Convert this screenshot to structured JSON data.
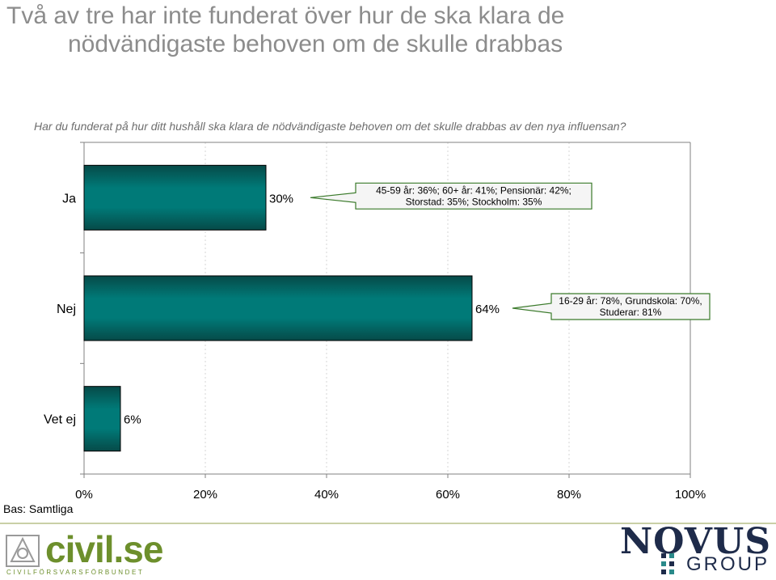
{
  "header": {
    "title_line1": "Två av tre har inte funderat över hur de ska klara de",
    "title_line2": "nödvändigaste behoven om de skulle drabbas",
    "question": "Har du funderat på hur ditt hushåll ska klara de nödvändigaste behoven om det skulle drabbas av den nya influensan?"
  },
  "base": "Bas: Samtliga",
  "logos": {
    "civil": "civil.se",
    "civil_sub": "CIVILFÖRSVARSFÖRBUNDET",
    "novus": "NOVUS",
    "group": "GROUP"
  },
  "colors": {
    "bar": "#007a78",
    "bar_dark": "#064a48",
    "callout_border": "#3a7a2a",
    "title": "#8c8c8c"
  },
  "chart_data": {
    "type": "bar",
    "orientation": "horizontal",
    "categories": [
      "Ja",
      "Nej",
      "Vet ej"
    ],
    "values": [
      30,
      64,
      6
    ],
    "value_labels": [
      "30%",
      "64%",
      "6%"
    ],
    "xlim": [
      0,
      100
    ],
    "xticks": [
      "0%",
      "20%",
      "40%",
      "60%",
      "80%",
      "100%"
    ],
    "grid": true,
    "callouts": [
      {
        "category": "Ja",
        "lines": [
          "45-59 år: 36%; 60+ år: 41%; Pensionär: 42%;",
          "Storstad: 35%; Stockholm: 35%"
        ]
      },
      {
        "category": "Nej",
        "lines": [
          "16-29 år: 78%, Grundskola: 70%,",
          "Studerar: 81%"
        ]
      }
    ]
  }
}
